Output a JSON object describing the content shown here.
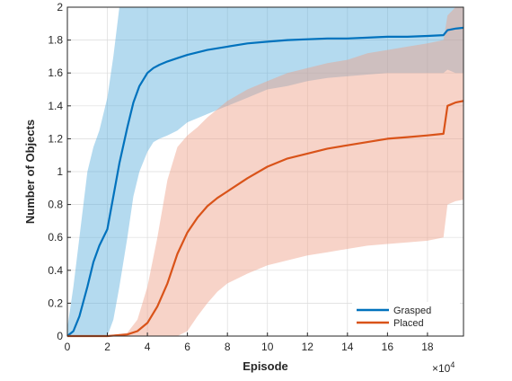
{
  "chart_data": {
    "type": "line",
    "xlabel": "Episode",
    "ylabel": "Number of Objects",
    "x_multiplier_label": "×10",
    "x_multiplier_exp": "4",
    "xlim": [
      0,
      19.8
    ],
    "ylim": [
      0,
      2
    ],
    "xticks": [
      0,
      2,
      4,
      6,
      8,
      10,
      12,
      14,
      16,
      18
    ],
    "yticks": [
      0,
      0.2,
      0.4,
      0.6,
      0.8,
      1,
      1.2,
      1.4,
      1.6,
      1.8,
      2
    ],
    "grid": true,
    "legend_position": "bottom-right",
    "series": [
      {
        "name": "Grasped",
        "color": "#0072BD",
        "band_color": "#4DA6D9",
        "x": [
          0,
          0.3,
          0.6,
          1.0,
          1.3,
          1.6,
          2.0,
          2.3,
          2.6,
          3.0,
          3.3,
          3.6,
          4.0,
          4.3,
          4.6,
          5.0,
          5.5,
          6.0,
          7.0,
          8.0,
          9.0,
          10.0,
          11.0,
          12.0,
          13.0,
          14.0,
          15.0,
          16.0,
          17.0,
          18.0,
          18.8,
          19.0,
          19.4,
          19.8
        ],
        "mean": [
          0,
          0.03,
          0.12,
          0.3,
          0.45,
          0.55,
          0.65,
          0.85,
          1.05,
          1.27,
          1.42,
          1.52,
          1.6,
          1.63,
          1.65,
          1.67,
          1.69,
          1.71,
          1.74,
          1.76,
          1.78,
          1.79,
          1.8,
          1.805,
          1.81,
          1.81,
          1.815,
          1.82,
          1.82,
          1.825,
          1.83,
          1.86,
          1.87,
          1.875
        ],
        "upper": [
          0.05,
          0.3,
          0.6,
          1.0,
          1.15,
          1.25,
          1.45,
          1.7,
          2.0,
          2.0,
          2.0,
          2.0,
          2.0,
          2.0,
          2.0,
          2.0,
          2.0,
          2.0,
          2.0,
          2.0,
          2.0,
          2.0,
          2.0,
          2.0,
          2.0,
          2.0,
          2.0,
          2.0,
          2.0,
          2.0,
          2.0,
          2.0,
          2.0,
          2.0
        ],
        "lower": [
          0,
          0,
          0,
          0,
          0,
          0,
          0,
          0.1,
          0.3,
          0.6,
          0.85,
          1.0,
          1.12,
          1.18,
          1.2,
          1.22,
          1.25,
          1.3,
          1.35,
          1.4,
          1.45,
          1.5,
          1.52,
          1.55,
          1.57,
          1.58,
          1.59,
          1.6,
          1.6,
          1.6,
          1.6,
          1.62,
          1.6,
          1.6
        ]
      },
      {
        "name": "Placed",
        "color": "#D95319",
        "band_color": "#EE9E84",
        "x": [
          0,
          1.0,
          2.0,
          3.0,
          3.5,
          4.0,
          4.5,
          5.0,
          5.5,
          6.0,
          6.5,
          7.0,
          7.5,
          8.0,
          9.0,
          10.0,
          11.0,
          12.0,
          13.0,
          14.0,
          15.0,
          16.0,
          17.0,
          18.0,
          18.8,
          19.0,
          19.4,
          19.8
        ],
        "mean": [
          0,
          0,
          0,
          0.01,
          0.03,
          0.08,
          0.18,
          0.32,
          0.5,
          0.63,
          0.72,
          0.79,
          0.84,
          0.88,
          0.96,
          1.03,
          1.08,
          1.11,
          1.14,
          1.16,
          1.18,
          1.2,
          1.21,
          1.22,
          1.23,
          1.4,
          1.42,
          1.43
        ],
        "upper": [
          0,
          0,
          0,
          0.02,
          0.1,
          0.3,
          0.6,
          0.95,
          1.15,
          1.22,
          1.27,
          1.33,
          1.38,
          1.43,
          1.5,
          1.55,
          1.6,
          1.63,
          1.66,
          1.68,
          1.72,
          1.74,
          1.76,
          1.78,
          1.8,
          1.95,
          2.0,
          2.0
        ],
        "lower": [
          0,
          0,
          0,
          0,
          0,
          0,
          0,
          0,
          0,
          0.03,
          0.12,
          0.2,
          0.27,
          0.32,
          0.38,
          0.43,
          0.46,
          0.49,
          0.51,
          0.53,
          0.55,
          0.56,
          0.57,
          0.58,
          0.6,
          0.8,
          0.82,
          0.83
        ]
      }
    ]
  }
}
